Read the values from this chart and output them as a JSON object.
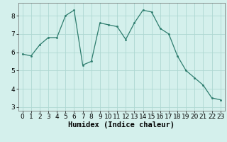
{
  "x": [
    0,
    1,
    2,
    3,
    4,
    5,
    6,
    7,
    8,
    9,
    10,
    11,
    12,
    13,
    14,
    15,
    16,
    17,
    18,
    19,
    20,
    21,
    22,
    23
  ],
  "y": [
    5.9,
    5.8,
    6.4,
    6.8,
    6.8,
    8.0,
    8.3,
    5.3,
    5.5,
    7.6,
    7.5,
    7.4,
    6.7,
    7.6,
    8.3,
    8.2,
    7.3,
    7.0,
    5.8,
    5.0,
    4.6,
    4.2,
    3.5,
    3.4
  ],
  "line_color": "#2e7d6e",
  "marker_color": "#2e7d6e",
  "bg_color": "#d4f0ec",
  "grid_color": "#aed8d2",
  "xlabel": "Humidex (Indice chaleur)",
  "ylim": [
    2.8,
    8.7
  ],
  "xlim": [
    -0.5,
    23.5
  ],
  "yticks": [
    3,
    4,
    5,
    6,
    7,
    8
  ],
  "xticks": [
    0,
    1,
    2,
    3,
    4,
    5,
    6,
    7,
    8,
    9,
    10,
    11,
    12,
    13,
    14,
    15,
    16,
    17,
    18,
    19,
    20,
    21,
    22,
    23
  ],
  "figsize": [
    3.2,
    2.0
  ],
  "dpi": 100,
  "tick_fontsize": 6.5,
  "xlabel_fontsize": 7.5
}
